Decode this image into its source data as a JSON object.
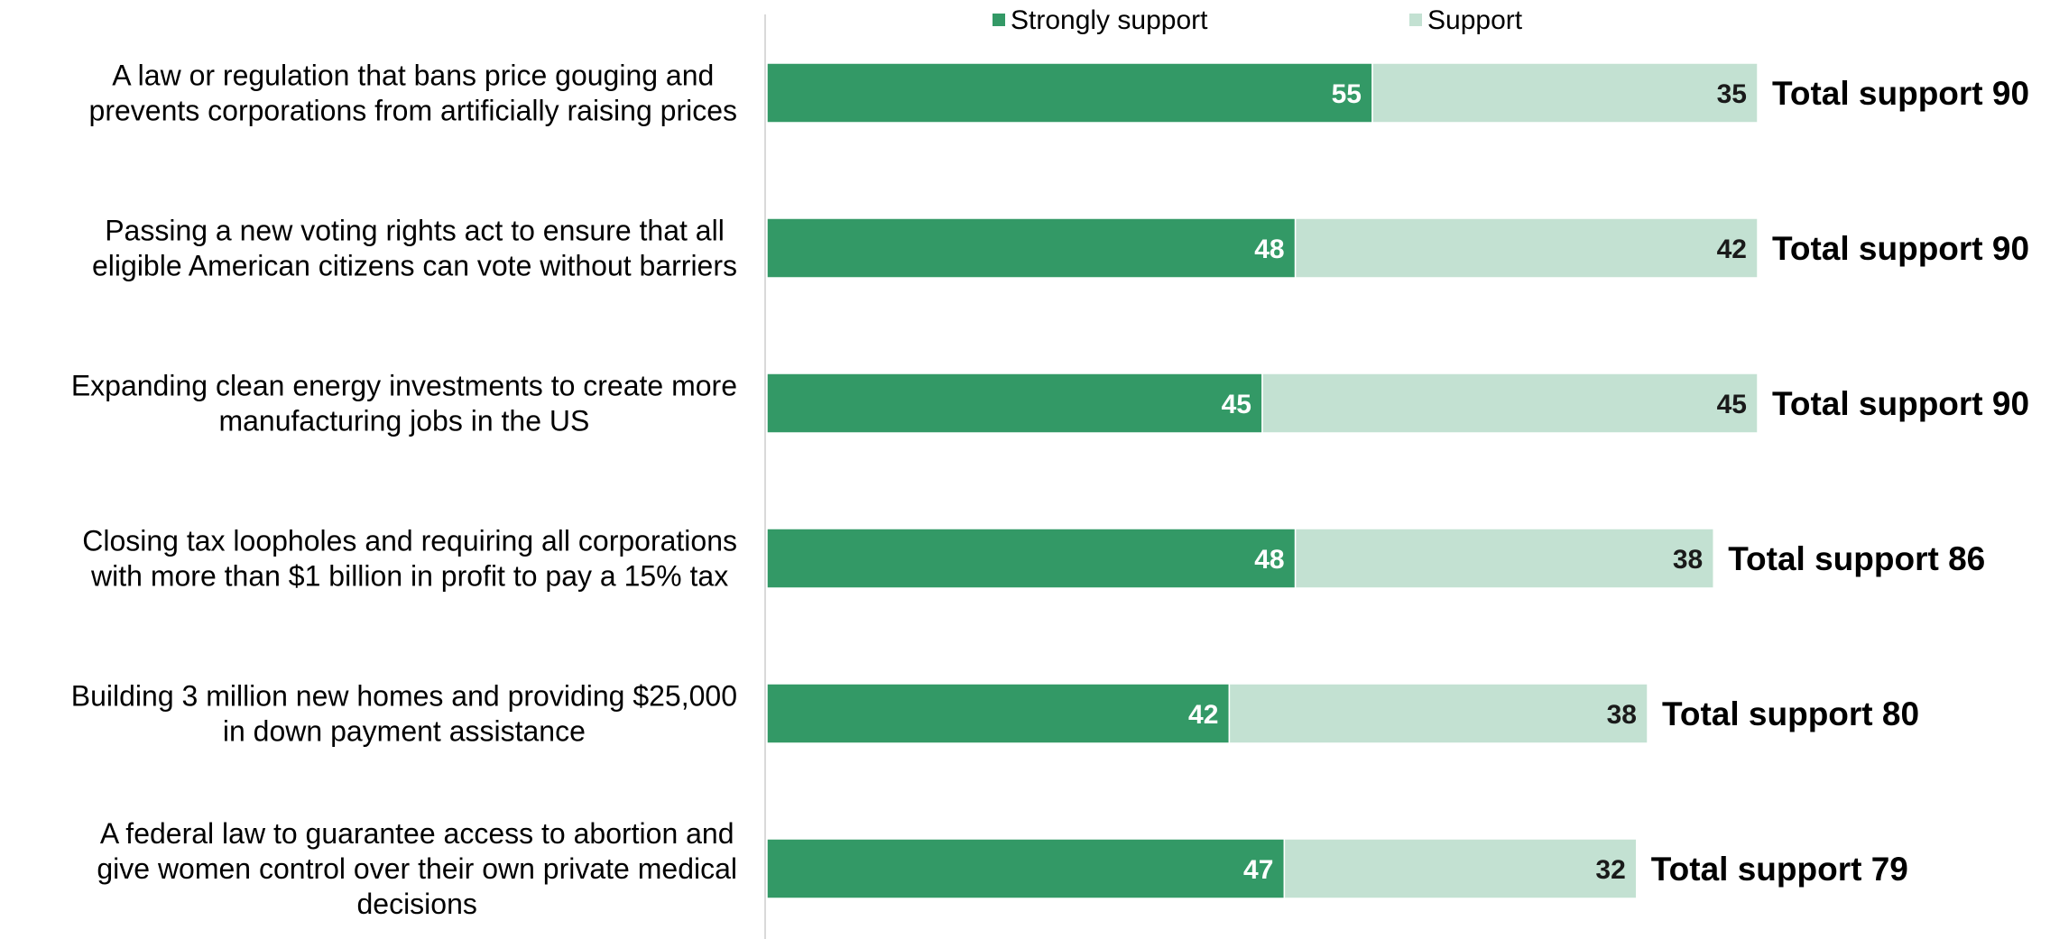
{
  "chart_data": {
    "type": "bar",
    "stacked": true,
    "orientation": "horizontal",
    "categories": [
      [
        "A law or regulation that bans price gouging and",
        "prevents corporations from artificially raising prices"
      ],
      [
        "Passing a new voting rights act to ensure that all",
        "eligible American citizens can vote without barriers"
      ],
      [
        "Expanding clean energy investments to create more",
        "manufacturing jobs in the US"
      ],
      [
        "Closing tax loopholes and requiring all corporations",
        "with more than $1 billion in profit to pay a 15% tax"
      ],
      [
        "Building 3 million new homes and providing $25,000",
        "in down payment assistance"
      ],
      [
        "A federal law to guarantee access to abortion and",
        "give women control over their own private medical",
        "decisions"
      ]
    ],
    "series": [
      {
        "name": "Strongly support",
        "color": "#339966",
        "values": [
          55,
          48,
          45,
          48,
          42,
          47
        ]
      },
      {
        "name": "Support",
        "color": "#c3e1d2",
        "values": [
          35,
          42,
          45,
          38,
          38,
          32
        ]
      }
    ],
    "totals": {
      "label": "Total support",
      "values": [
        90,
        90,
        90,
        86,
        80,
        79
      ]
    },
    "legend": {
      "position": "top"
    }
  }
}
